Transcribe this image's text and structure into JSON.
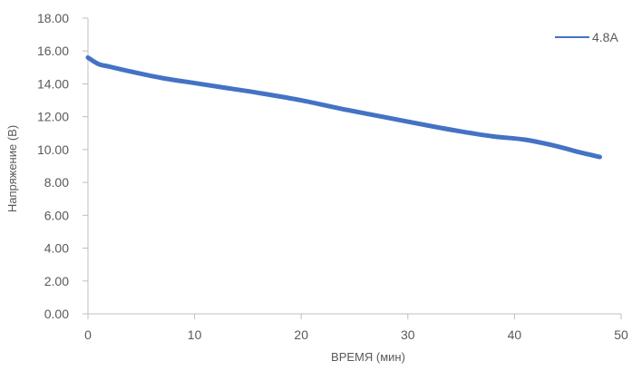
{
  "chart_data": {
    "type": "line",
    "title": "",
    "xlabel": "ВРЕМЯ (мин)",
    "ylabel": "Напряжение (В)",
    "xlim": [
      0,
      50
    ],
    "ylim": [
      0,
      18
    ],
    "x_ticks": [
      "0",
      "10",
      "20",
      "30",
      "40",
      "50"
    ],
    "y_ticks": [
      "0.00",
      "2.00",
      "4.00",
      "6.00",
      "8.00",
      "10.00",
      "12.00",
      "14.00",
      "16.00",
      "18.00"
    ],
    "grid": false,
    "legend_position": "top-right",
    "series": [
      {
        "name": "4.8A",
        "color": "#4472C4",
        "points": [
          [
            0,
            15.6
          ],
          [
            1,
            15.2
          ],
          [
            2,
            15.05
          ],
          [
            4,
            14.75
          ],
          [
            7,
            14.35
          ],
          [
            10,
            14.05
          ],
          [
            13,
            13.75
          ],
          [
            16,
            13.45
          ],
          [
            20,
            13.0
          ],
          [
            24,
            12.45
          ],
          [
            28,
            11.95
          ],
          [
            32,
            11.45
          ],
          [
            35,
            11.1
          ],
          [
            38,
            10.8
          ],
          [
            41,
            10.6
          ],
          [
            44,
            10.2
          ],
          [
            46,
            9.85
          ],
          [
            48,
            9.55
          ]
        ]
      }
    ]
  }
}
